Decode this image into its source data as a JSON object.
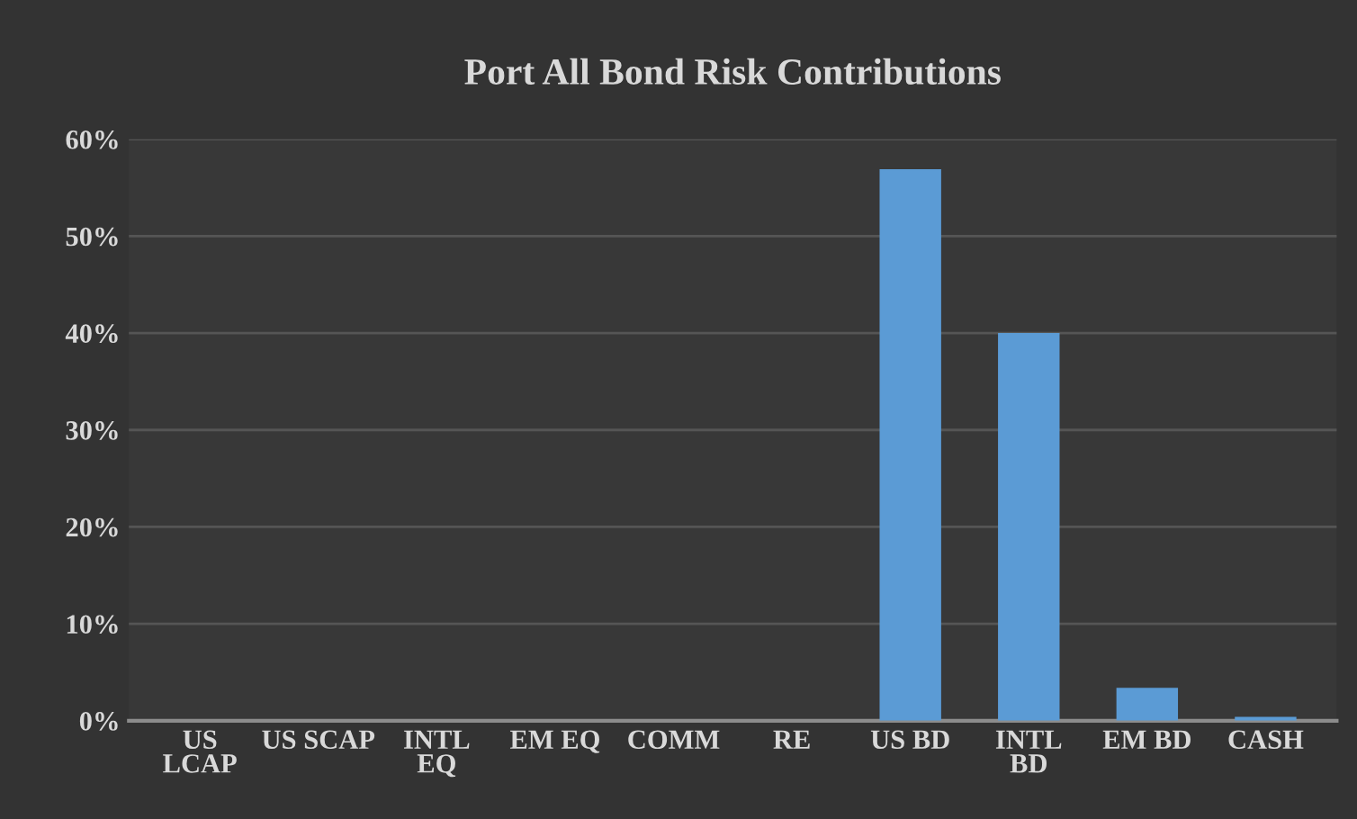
{
  "chart_data": {
    "type": "bar",
    "title": "Port All Bond Risk Contributions",
    "categories": [
      "US\nLCAP",
      "US SCAP",
      "INTL\nEQ",
      "EM EQ",
      "COMM",
      "RE",
      "US BD",
      "INTL\nBD",
      "EM BD",
      "CASH"
    ],
    "values": [
      0,
      0,
      0,
      0,
      0,
      0,
      56.9,
      40,
      3.4,
      0.4
    ],
    "color": "#5b9bd5",
    "ylim": [
      0,
      60
    ],
    "yticks": [
      {
        "value": 0,
        "label": "0%"
      },
      {
        "value": 10,
        "label": "10%"
      },
      {
        "value": 20,
        "label": "20%"
      },
      {
        "value": 30,
        "label": "30%"
      },
      {
        "value": 40,
        "label": "40%"
      },
      {
        "value": 50,
        "label": "50%"
      },
      {
        "value": 60,
        "label": "60%"
      }
    ],
    "grid": "y"
  }
}
